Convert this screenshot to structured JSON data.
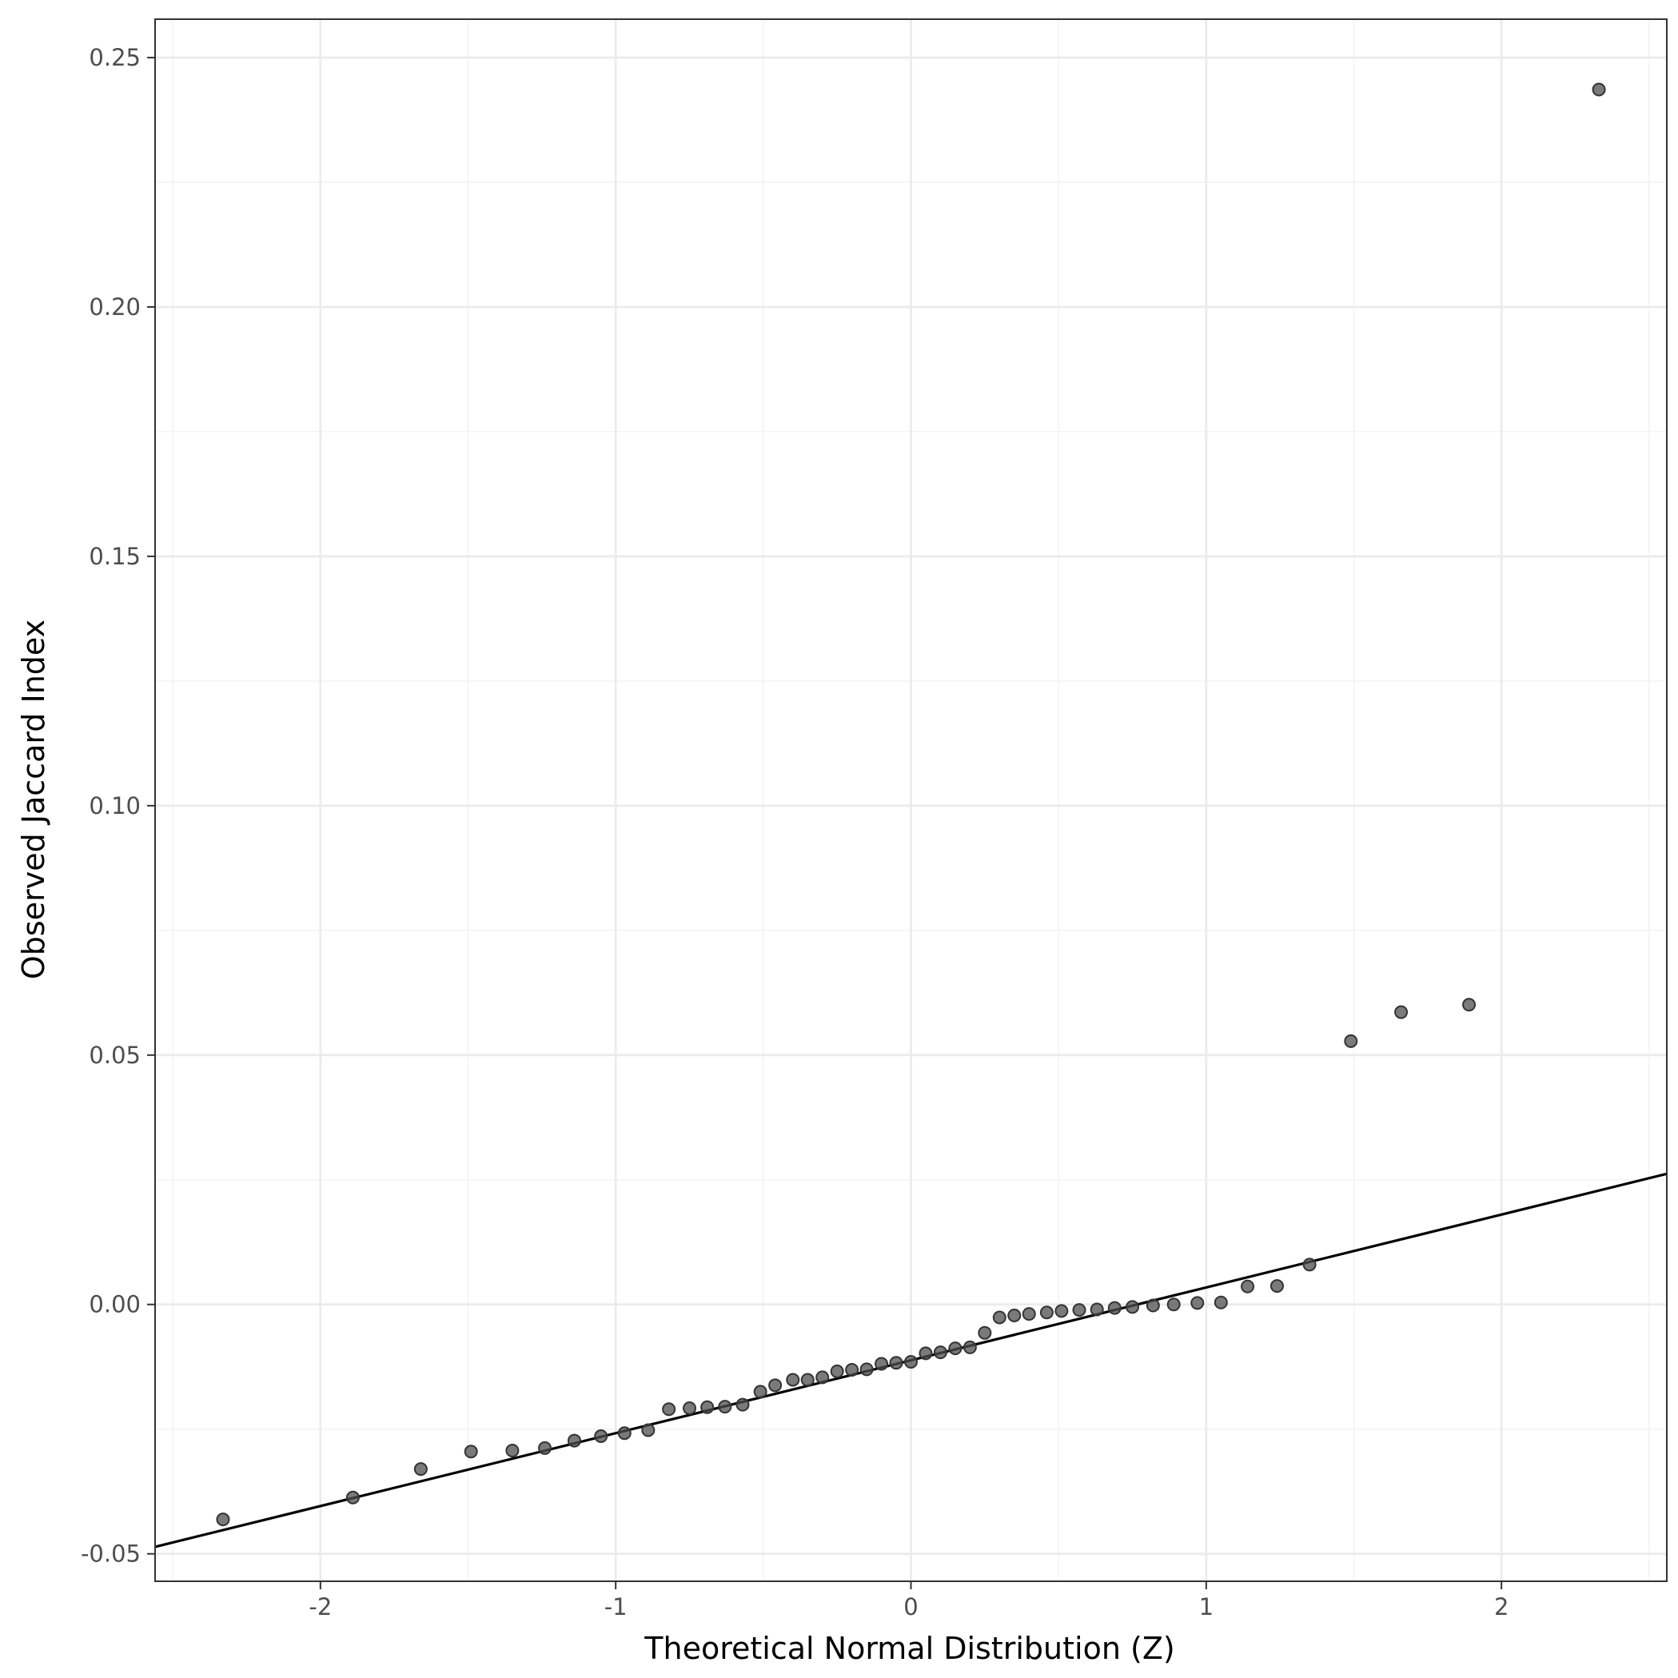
{
  "chart_data": {
    "type": "scatter",
    "xlabel": "Theoretical Normal Distribution (Z)",
    "ylabel": "Observed Jaccard Index",
    "xlim": [
      -2.56,
      2.56
    ],
    "ylim": [
      -0.0555,
      0.2577
    ],
    "x_ticks": [
      -2,
      -1,
      0,
      1,
      2
    ],
    "x_tick_labels": [
      "-2",
      "-1",
      "0",
      "1",
      "2"
    ],
    "y_ticks": [
      -0.05,
      0.0,
      0.05,
      0.1,
      0.15,
      0.2,
      0.25
    ],
    "y_tick_labels": [
      "-0.05",
      "0.00",
      "0.05",
      "0.10",
      "0.15",
      "0.20",
      "0.25"
    ],
    "grid": true,
    "legend": "none",
    "point_color": "#4d4d4d",
    "point_alpha": 0.75,
    "reference_line": {
      "description": "qq line",
      "intercept": -0.0112,
      "slope": 0.01461,
      "color": "#000000"
    },
    "points": [
      {
        "x": -2.33,
        "y": -0.0431
      },
      {
        "x": -1.89,
        "y": -0.0387
      },
      {
        "x": -1.66,
        "y": -0.033
      },
      {
        "x": -1.49,
        "y": -0.0295
      },
      {
        "x": -1.35,
        "y": -0.0293
      },
      {
        "x": -1.24,
        "y": -0.0288
      },
      {
        "x": -1.14,
        "y": -0.0273
      },
      {
        "x": -1.05,
        "y": -0.0264
      },
      {
        "x": -0.97,
        "y": -0.0258
      },
      {
        "x": -0.89,
        "y": -0.0252
      },
      {
        "x": -0.82,
        "y": -0.021
      },
      {
        "x": -0.75,
        "y": -0.0208
      },
      {
        "x": -0.69,
        "y": -0.0206
      },
      {
        "x": -0.63,
        "y": -0.0205
      },
      {
        "x": -0.57,
        "y": -0.0201
      },
      {
        "x": -0.51,
        "y": -0.0175
      },
      {
        "x": -0.46,
        "y": -0.0162
      },
      {
        "x": -0.4,
        "y": -0.0151
      },
      {
        "x": -0.35,
        "y": -0.0151
      },
      {
        "x": -0.3,
        "y": -0.0146
      },
      {
        "x": -0.25,
        "y": -0.0134
      },
      {
        "x": -0.2,
        "y": -0.0131
      },
      {
        "x": -0.15,
        "y": -0.013
      },
      {
        "x": -0.1,
        "y": -0.0119
      },
      {
        "x": -0.05,
        "y": -0.0117
      },
      {
        "x": 0.0,
        "y": -0.0115
      },
      {
        "x": 0.05,
        "y": -0.0098
      },
      {
        "x": 0.1,
        "y": -0.0096
      },
      {
        "x": 0.15,
        "y": -0.0088
      },
      {
        "x": 0.2,
        "y": -0.0086
      },
      {
        "x": 0.25,
        "y": -0.0057
      },
      {
        "x": 0.3,
        "y": -0.0026
      },
      {
        "x": 0.35,
        "y": -0.0022
      },
      {
        "x": 0.4,
        "y": -0.0019
      },
      {
        "x": 0.46,
        "y": -0.0016
      },
      {
        "x": 0.51,
        "y": -0.0013
      },
      {
        "x": 0.57,
        "y": -0.0011
      },
      {
        "x": 0.63,
        "y": -0.001
      },
      {
        "x": 0.69,
        "y": -0.0007
      },
      {
        "x": 0.75,
        "y": -0.0005
      },
      {
        "x": 0.82,
        "y": -0.0002
      },
      {
        "x": 0.89,
        "y": 0.0
      },
      {
        "x": 0.97,
        "y": 0.0003
      },
      {
        "x": 1.05,
        "y": 0.0004
      },
      {
        "x": 1.14,
        "y": 0.0036
      },
      {
        "x": 1.24,
        "y": 0.0037
      },
      {
        "x": 1.35,
        "y": 0.008
      },
      {
        "x": 1.49,
        "y": 0.0528
      },
      {
        "x": 1.66,
        "y": 0.0586
      },
      {
        "x": 1.89,
        "y": 0.0601
      },
      {
        "x": 2.33,
        "y": 0.2436
      }
    ]
  }
}
